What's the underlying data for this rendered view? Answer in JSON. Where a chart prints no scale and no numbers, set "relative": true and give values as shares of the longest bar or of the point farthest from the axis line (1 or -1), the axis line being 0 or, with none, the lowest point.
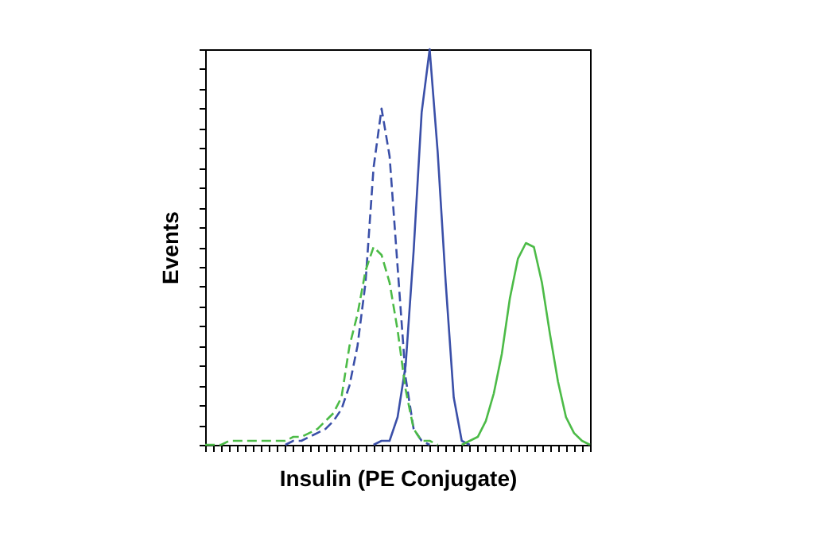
{
  "chart_data": {
    "type": "line",
    "relative": true,
    "xlabel": "Insulin (PE Conjugate)",
    "ylabel": "Events",
    "grid": false,
    "tick_labels": false,
    "marker": "none",
    "categories": [
      null,
      null,
      null,
      null,
      null,
      null,
      null,
      null,
      null,
      null,
      null,
      null,
      null,
      null,
      null,
      null,
      null,
      null,
      null,
      null,
      null,
      null,
      null,
      null,
      null,
      null,
      null,
      null,
      null,
      null,
      null,
      null,
      null,
      null,
      null,
      null,
      null,
      null,
      null,
      null,
      null,
      null,
      null,
      null,
      null,
      null,
      null,
      null,
      null
    ],
    "series": [
      {
        "color": "#3a4fa8",
        "line_style": "dashed",
        "values": [
          null,
          null,
          null,
          null,
          null,
          null,
          null,
          null,
          null,
          null,
          0,
          0.01,
          0.01,
          0.02,
          0.03,
          0.04,
          0.06,
          0.09,
          0.15,
          0.25,
          0.41,
          0.7,
          0.85,
          0.73,
          0.45,
          0.17,
          0.04,
          0.01,
          0,
          null,
          null,
          null,
          null,
          null,
          null,
          null,
          null,
          null,
          null,
          null,
          null,
          null,
          null,
          null,
          null,
          null,
          null,
          null,
          null
        ]
      },
      {
        "color": "#3a4fa8",
        "line_style": "solid",
        "values": [
          null,
          null,
          null,
          null,
          null,
          null,
          null,
          null,
          null,
          null,
          null,
          null,
          null,
          null,
          null,
          null,
          null,
          null,
          null,
          null,
          null,
          0,
          0.01,
          0.01,
          0.07,
          0.2,
          0.49,
          0.84,
          1,
          0.74,
          0.41,
          0.12,
          0.01,
          0,
          null,
          null,
          null,
          null,
          null,
          null,
          null,
          null,
          null,
          null,
          null,
          null,
          null,
          null,
          null
        ]
      },
      {
        "color": "#4cbb47",
        "line_style": "dashed",
        "values": [
          0,
          0,
          0,
          0.01,
          0.01,
          0.01,
          0.01,
          0.01,
          0.01,
          0.01,
          0.01,
          0.02,
          0.02,
          0.03,
          0.04,
          0.06,
          0.08,
          0.12,
          0.25,
          0.33,
          0.44,
          0.5,
          0.48,
          0.41,
          0.29,
          0.14,
          0.04,
          0.01,
          0.01,
          0,
          null,
          null,
          null,
          null,
          null,
          null,
          null,
          null,
          null,
          null,
          null,
          null,
          null,
          null,
          null,
          null,
          null,
          null,
          null
        ]
      },
      {
        "color": "#4cbb47",
        "line_style": "solid",
        "values": [
          null,
          null,
          null,
          null,
          null,
          null,
          null,
          null,
          null,
          null,
          null,
          null,
          null,
          null,
          null,
          null,
          null,
          null,
          null,
          null,
          null,
          null,
          null,
          null,
          null,
          null,
          null,
          null,
          null,
          null,
          null,
          null,
          0,
          0.01,
          0.02,
          0.06,
          0.13,
          0.23,
          0.37,
          0.47,
          0.51,
          0.5,
          0.41,
          0.28,
          0.16,
          0.07,
          0.03,
          0.01,
          0
        ]
      }
    ]
  }
}
